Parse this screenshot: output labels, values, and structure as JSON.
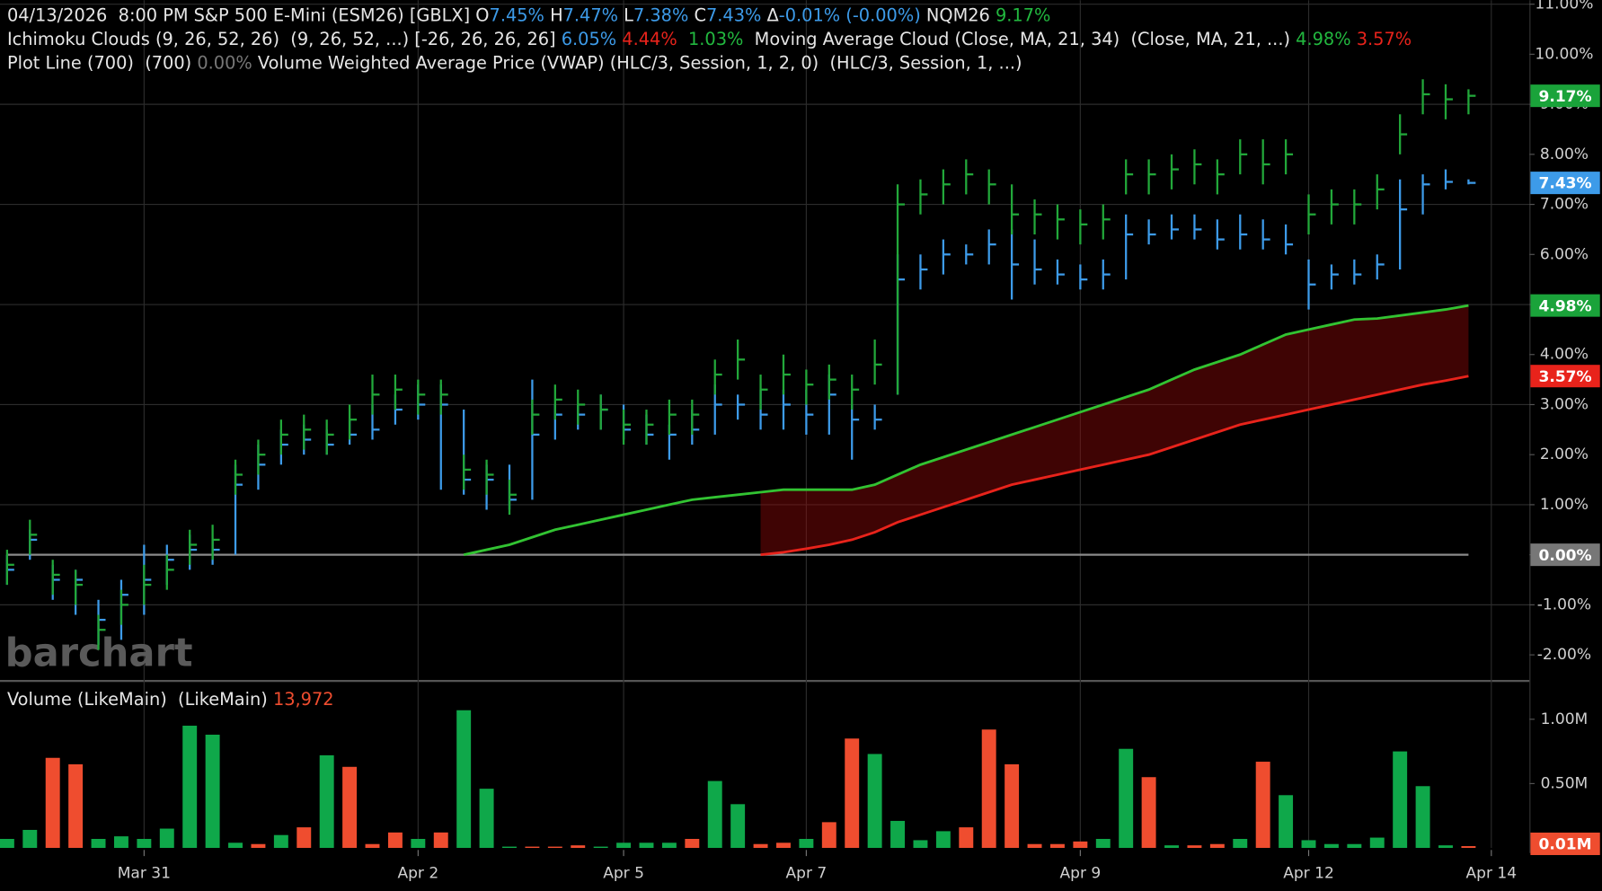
{
  "header": {
    "lines": [
      [
        {
          "text": "04/13/2026  8:00 PM S&P 500 E-Mini (ESM26) [GBLX] ",
          "color": "#e6e6e6"
        },
        {
          "text": "O",
          "color": "#e6e6e6"
        },
        {
          "text": "7.45%",
          "color": "#3d9be9"
        },
        {
          "text": " H",
          "color": "#e6e6e6"
        },
        {
          "text": "7.47%",
          "color": "#3d9be9"
        },
        {
          "text": " L",
          "color": "#e6e6e6"
        },
        {
          "text": "7.38%",
          "color": "#3d9be9"
        },
        {
          "text": " C",
          "color": "#e6e6e6"
        },
        {
          "text": "7.43%",
          "color": "#3d9be9"
        },
        {
          "text": " Δ",
          "color": "#e6e6e6"
        },
        {
          "text": "-0.01% (-0.00%)",
          "color": "#3d9be9"
        },
        {
          "text": " NQM26 ",
          "color": "#e6e6e6"
        },
        {
          "text": "9.17%",
          "color": "#22b83f"
        }
      ],
      [
        {
          "text": "Ichimoku Clouds (9, 26, 52, 26)  (9, 26, 52, ...) [-26, 26, 26, 26] ",
          "color": "#e6e6e6"
        },
        {
          "text": "6.05%",
          "color": "#3d9be9"
        },
        {
          "text": " 4.44%",
          "color": "#e8231b"
        },
        {
          "text": "  1.03%",
          "color": "#22b83f"
        },
        {
          "text": "  Moving Average Cloud (Close, MA, 21, 34)  (Close, MA, 21, ...) ",
          "color": "#e6e6e6"
        },
        {
          "text": "4.98%",
          "color": "#22b83f"
        },
        {
          "text": " 3.57%",
          "color": "#e8231b"
        }
      ],
      [
        {
          "text": "Plot Line (700)  (700) ",
          "color": "#e6e6e6"
        },
        {
          "text": "0.00%",
          "color": "#777777"
        },
        {
          "text": " Volume Weighted Average Price (VWAP) (HLC/3, Session, 1, 2, 0)  (HLC/3, Session, 1, ...)",
          "color": "#e6e6e6"
        }
      ]
    ]
  },
  "watermark": "barchart",
  "chart_data": [
    {
      "type": "hlc",
      "grid": true,
      "xlim": [
        -0.31,
        66.67
      ],
      "xticks": [
        {
          "value": 6,
          "label": "Mar 31"
        },
        {
          "value": 18,
          "label": "Apr 2"
        },
        {
          "value": 27,
          "label": "Apr 5"
        },
        {
          "value": 35,
          "label": "Apr 7"
        },
        {
          "value": 47,
          "label": "Apr 9"
        },
        {
          "value": 57,
          "label": "Apr 12"
        },
        {
          "value": 65,
          "label": "Apr 14"
        }
      ],
      "ylim": [
        -2.49,
        11.08
      ],
      "yticks": [
        {
          "value": -2,
          "label": "-2.00%"
        },
        {
          "value": -1,
          "label": "-1.00%"
        },
        {
          "value": 0,
          "label": "0.00%"
        },
        {
          "value": 1,
          "label": "1.00%"
        },
        {
          "value": 2,
          "label": "2.00%"
        },
        {
          "value": 3,
          "label": "3.00%"
        },
        {
          "value": 4,
          "label": "4.00%"
        },
        {
          "value": 5,
          "label": "5.00%"
        },
        {
          "value": 6,
          "label": "6.00%"
        },
        {
          "value": 7,
          "label": "7.00%"
        },
        {
          "value": 8,
          "label": "8.00%"
        },
        {
          "value": 9,
          "label": "9.00%"
        },
        {
          "value": 10,
          "label": "10.00%"
        },
        {
          "value": 11,
          "label": "11.00%"
        }
      ],
      "series": [
        {
          "color": "#3d9be9",
          "last_label": "7.43%",
          "high": [
            0,
            0.5,
            -0.2,
            -0.3,
            -0.9,
            -0.5,
            0.2,
            0.2,
            0.4,
            0.3,
            1.8,
            2.2,
            2.5,
            2.6,
            2.5,
            2.7,
            3.0,
            3.2,
            3.4,
            3.4,
            2.9,
            1.8,
            1.8,
            3.5,
            3.0,
            3.0,
            3.2,
            3.0,
            2.8,
            2.6,
            2.9,
            3.4,
            3.2,
            3.3,
            3.3,
            3.3,
            3.6,
            3.0,
            3.0,
            6.0,
            6.0,
            6.3,
            6.2,
            6.5,
            6.5,
            6.3,
            5.9,
            5.8,
            5.9,
            6.8,
            6.7,
            6.8,
            6.8,
            6.7,
            6.8,
            6.7,
            6.6,
            5.9,
            5.8,
            5.9,
            6.0,
            7.5,
            7.6,
            7.7,
            7.5
          ],
          "low": [
            -0.6,
            -0.1,
            -0.9,
            -1.2,
            -1.8,
            -1.7,
            -1.2,
            -0.6,
            -0.3,
            -0.2,
            0.0,
            1.3,
            1.8,
            2.0,
            2.0,
            2.2,
            2.3,
            2.6,
            2.7,
            1.3,
            1.2,
            0.9,
            0.9,
            1.1,
            2.3,
            2.5,
            2.5,
            2.3,
            2.2,
            1.9,
            2.2,
            2.4,
            2.7,
            2.5,
            2.5,
            2.4,
            2.4,
            1.9,
            2.5,
            3.2,
            5.3,
            5.6,
            5.8,
            5.8,
            5.1,
            5.4,
            5.4,
            5.3,
            5.3,
            5.5,
            6.2,
            6.3,
            6.3,
            6.1,
            6.1,
            6.1,
            6.0,
            4.9,
            5.3,
            5.4,
            5.5,
            5.7,
            6.8,
            7.3,
            7.4
          ],
          "values": [
            -0.3,
            0.3,
            -0.5,
            -0.5,
            -1.3,
            -0.8,
            -0.5,
            -0.1,
            0.1,
            0.1,
            1.4,
            1.8,
            2.2,
            2.3,
            2.2,
            2.4,
            2.5,
            2.9,
            3.0,
            3.0,
            1.5,
            1.5,
            1.1,
            2.4,
            2.8,
            2.8,
            2.9,
            2.5,
            2.4,
            2.4,
            2.5,
            3.0,
            3.0,
            2.8,
            3.0,
            2.8,
            3.2,
            2.7,
            2.7,
            5.5,
            5.7,
            6.0,
            6.0,
            6.2,
            5.8,
            5.7,
            5.6,
            5.5,
            5.6,
            6.4,
            6.4,
            6.5,
            6.5,
            6.3,
            6.4,
            6.3,
            6.2,
            5.4,
            5.6,
            5.6,
            5.8,
            6.9,
            7.4,
            7.45,
            7.43
          ]
        },
        {
          "color": "#22a83a",
          "last_label": "9.17%",
          "high": [
            0.1,
            0.7,
            -0.1,
            -0.3,
            -1.2,
            -0.7,
            -0.2,
            0.0,
            0.5,
            0.6,
            1.9,
            2.3,
            2.7,
            2.8,
            2.7,
            3.0,
            3.6,
            3.6,
            3.5,
            3.5,
            2.0,
            1.9,
            1.5,
            3.1,
            3.4,
            3.3,
            3.2,
            2.9,
            2.9,
            3.1,
            3.1,
            3.9,
            4.3,
            3.6,
            4.0,
            3.7,
            3.8,
            3.6,
            4.3,
            7.4,
            7.5,
            7.7,
            7.9,
            7.7,
            7.4,
            7.1,
            7.0,
            6.9,
            7.0,
            7.9,
            7.9,
            8.0,
            8.1,
            7.9,
            8.3,
            8.3,
            8.3,
            7.2,
            7.3,
            7.3,
            7.6,
            8.8,
            9.5,
            9.4,
            9.3
          ],
          "low": [
            -0.6,
            0.0,
            -0.8,
            -1.0,
            -1.9,
            -1.4,
            -1.0,
            -0.7,
            -0.2,
            -0.1,
            1.2,
            1.6,
            2.0,
            2.1,
            2.0,
            2.3,
            2.8,
            2.9,
            2.8,
            2.8,
            1.3,
            1.2,
            0.8,
            2.4,
            2.7,
            2.6,
            2.5,
            2.2,
            2.2,
            2.4,
            2.4,
            3.2,
            3.5,
            2.9,
            3.2,
            3.0,
            3.1,
            2.9,
            3.4,
            3.2,
            6.8,
            7.0,
            7.2,
            7.0,
            6.4,
            6.4,
            6.3,
            6.2,
            6.3,
            7.2,
            7.2,
            7.3,
            7.4,
            7.2,
            7.6,
            7.4,
            7.6,
            6.4,
            6.6,
            6.6,
            6.9,
            8.0,
            8.8,
            8.7,
            8.8
          ],
          "values": [
            -0.2,
            0.4,
            -0.4,
            -0.6,
            -1.5,
            -1.0,
            -0.6,
            -0.3,
            0.2,
            0.3,
            1.6,
            2.0,
            2.4,
            2.5,
            2.4,
            2.7,
            3.2,
            3.3,
            3.2,
            3.2,
            1.7,
            1.6,
            1.2,
            2.8,
            3.1,
            3.0,
            2.9,
            2.6,
            2.6,
            2.8,
            2.8,
            3.6,
            3.9,
            3.3,
            3.6,
            3.4,
            3.5,
            3.3,
            3.8,
            7.0,
            7.2,
            7.4,
            7.6,
            7.4,
            6.8,
            6.8,
            6.7,
            6.6,
            6.7,
            7.6,
            7.6,
            7.7,
            7.8,
            7.6,
            8.0,
            7.8,
            8.0,
            6.8,
            7.0,
            7.0,
            7.3,
            8.4,
            9.2,
            9.1,
            9.17
          ]
        }
      ],
      "lines": [
        {
          "color": "#32c332",
          "last_label": "4.98%",
          "values": [
            null,
            null,
            null,
            null,
            null,
            null,
            null,
            null,
            null,
            null,
            null,
            null,
            null,
            null,
            null,
            null,
            null,
            null,
            null,
            null,
            0.0,
            0.1,
            0.2,
            0.35,
            0.5,
            0.6,
            0.7,
            0.8,
            0.9,
            1.0,
            1.1,
            1.15,
            1.2,
            1.25,
            1.3,
            1.3,
            1.3,
            1.3,
            1.4,
            1.6,
            1.8,
            1.95,
            2.1,
            2.25,
            2.4,
            2.55,
            2.7,
            2.85,
            3.0,
            3.15,
            3.3,
            3.5,
            3.7,
            3.85,
            4.0,
            4.2,
            4.4,
            4.5,
            4.6,
            4.7,
            4.72,
            4.78,
            4.84,
            4.9,
            4.98
          ]
        },
        {
          "color": "#e8231b",
          "last_label": "3.57%",
          "values": [
            null,
            null,
            null,
            null,
            null,
            null,
            null,
            null,
            null,
            null,
            null,
            null,
            null,
            null,
            null,
            null,
            null,
            null,
            null,
            null,
            null,
            null,
            null,
            null,
            null,
            null,
            null,
            null,
            null,
            null,
            null,
            null,
            null,
            0.0,
            0.05,
            0.12,
            0.2,
            0.3,
            0.45,
            0.65,
            0.8,
            0.95,
            1.1,
            1.25,
            1.4,
            1.5,
            1.6,
            1.7,
            1.8,
            1.9,
            2.0,
            2.15,
            2.3,
            2.45,
            2.6,
            2.7,
            2.8,
            2.9,
            3.0,
            3.1,
            3.2,
            3.3,
            3.4,
            3.48,
            3.57
          ]
        }
      ],
      "cloud_color": "rgba(150,10,10,0.42)",
      "level_line": {
        "value": 0,
        "color": "#8a8a8a",
        "last_label": "0.00%"
      }
    },
    {
      "type": "bar",
      "grid": false,
      "title": "Volume (LikeMain)  (LikeMain) ",
      "last_value_label": "13,972",
      "last_label": "0.01M",
      "ylim": [
        0,
        1286000
      ],
      "yticks": [
        {
          "value": 500000,
          "label": "0.50M"
        },
        {
          "value": 1000000,
          "label": "1.00M"
        }
      ],
      "up_color": "#0fa84a",
      "down_color": "#ef4d2f",
      "up": [
        true,
        true,
        false,
        false,
        true,
        true,
        true,
        true,
        true,
        true,
        true,
        false,
        true,
        false,
        true,
        false,
        false,
        false,
        true,
        false,
        true,
        true,
        true,
        false,
        false,
        false,
        true,
        true,
        true,
        true,
        false,
        true,
        true,
        false,
        false,
        true,
        false,
        false,
        true,
        true,
        true,
        true,
        false,
        false,
        false,
        false,
        false,
        false,
        true,
        true,
        false,
        true,
        false,
        false,
        true,
        false,
        true,
        true,
        true,
        true,
        true,
        true,
        true,
        true,
        false
      ],
      "values": [
        70000,
        140000,
        700000,
        650000,
        70000,
        90000,
        70000,
        150000,
        950000,
        880000,
        40000,
        30000,
        100000,
        160000,
        720000,
        630000,
        30000,
        120000,
        70000,
        120000,
        1070000,
        460000,
        10000,
        10000,
        10000,
        20000,
        10000,
        40000,
        40000,
        40000,
        70000,
        520000,
        340000,
        30000,
        40000,
        70000,
        200000,
        850000,
        730000,
        210000,
        60000,
        130000,
        160000,
        920000,
        650000,
        30000,
        30000,
        50000,
        70000,
        770000,
        550000,
        20000,
        20000,
        30000,
        70000,
        670000,
        410000,
        60000,
        30000,
        30000,
        80000,
        750000,
        480000,
        20000,
        13972
      ]
    }
  ]
}
